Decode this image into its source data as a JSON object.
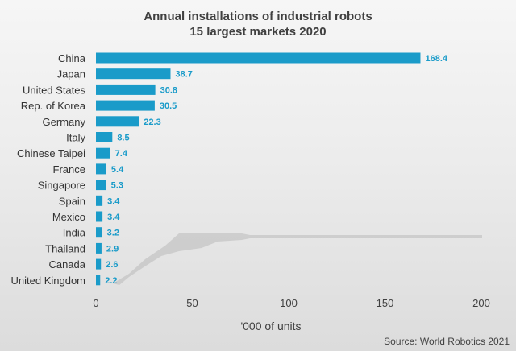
{
  "chart_data": {
    "type": "bar",
    "orientation": "horizontal",
    "title": "Annual installations of industrial robots",
    "subtitle": "15 largest markets 2020",
    "xlabel": "'000 of units",
    "ylabel": "",
    "xlim": [
      0,
      200
    ],
    "xticks": [
      0,
      50,
      100,
      150,
      200
    ],
    "grid": false,
    "legend": "none",
    "categories": [
      "China",
      "Japan",
      "United States",
      "Rep. of Korea",
      "Germany",
      "Italy",
      "Chinese Taipei",
      "France",
      "Singapore",
      "Spain",
      "Mexico",
      "India",
      "Thailand",
      "Canada",
      "United Kingdom"
    ],
    "values": [
      168.4,
      38.7,
      30.8,
      30.5,
      22.3,
      8.5,
      7.4,
      5.4,
      5.3,
      3.4,
      3.4,
      3.2,
      2.9,
      2.6,
      2.2
    ],
    "value_labels": [
      "168.4",
      "38.7",
      "30.8",
      "30.5",
      "22.3",
      "8.5",
      "7.4",
      "5.4",
      "5.3",
      "3.4",
      "3.4",
      "3.2",
      "2.9",
      "2.6",
      "2.2"
    ],
    "bar_color": "#1a9bc9",
    "label_color": "#1a9bc9",
    "source": "Source: World Robotics 2021"
  }
}
